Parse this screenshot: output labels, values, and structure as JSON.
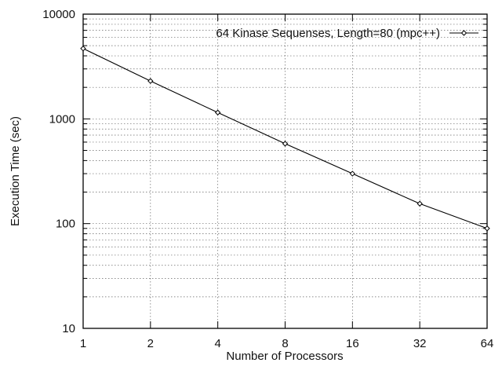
{
  "chart_data": {
    "type": "line",
    "x_scale": "log2",
    "y_scale": "log10",
    "xlabel": "Number of Processors",
    "ylabel": "Execution Time (sec)",
    "xlim": [
      1,
      64
    ],
    "ylim": [
      10,
      10000
    ],
    "x_ticks": [
      1,
      2,
      4,
      8,
      16,
      32,
      64
    ],
    "x_tick_labels": [
      "1",
      "2",
      "4",
      "8",
      "16",
      "32",
      "64"
    ],
    "y_ticks": [
      10,
      100,
      1000,
      10000
    ],
    "y_tick_labels": [
      "10",
      "100",
      "1000",
      "10000"
    ],
    "grid": true,
    "grid_style": "dotted",
    "legend_position": "top-right",
    "series": [
      {
        "name": "64 Kinase Sequenses, Length=80 (mpc++)",
        "x": [
          1,
          2,
          4,
          8,
          16,
          32,
          64
        ],
        "y": [
          4700,
          2300,
          1150,
          580,
          300,
          155,
          90
        ],
        "marker": "diamond",
        "color": "#000000"
      }
    ]
  }
}
